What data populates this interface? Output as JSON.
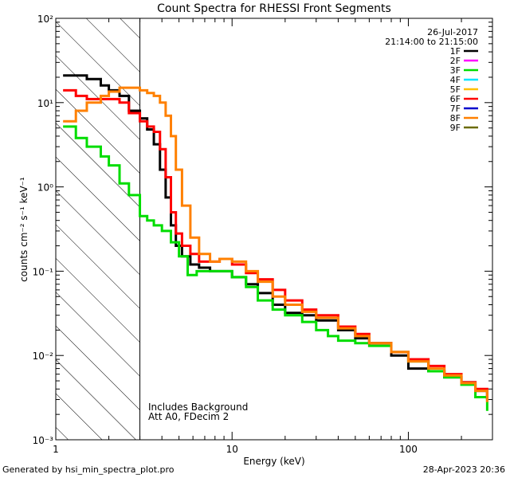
{
  "chart_data": {
    "type": "line",
    "title": "Count Spectra for RHESSI Front Segments",
    "xlabel": "Energy (keV)",
    "ylabel": "counts cm⁻² s⁻¹ keV⁻¹",
    "xscale": "log",
    "yscale": "log",
    "xlim": [
      1,
      300
    ],
    "ylim": [
      0.001,
      100
    ],
    "x_tick_labels": [
      {
        "value": 1,
        "label": "1"
      },
      {
        "value": 10,
        "label": "10"
      },
      {
        "value": 100,
        "label": "100"
      }
    ],
    "y_tick_labels": [
      {
        "value": 100,
        "label": "10²"
      },
      {
        "value": 10,
        "label": "10¹"
      },
      {
        "value": 1,
        "label": "10⁰"
      },
      {
        "value": 0.1,
        "label": "10⁻¹"
      },
      {
        "value": 0.01,
        "label": "10⁻²"
      },
      {
        "value": 0.001,
        "label": "10⁻³"
      }
    ],
    "date": "26-Jul-2017",
    "time_range": "21:14:00 to 21:15:00",
    "shaded_region_x": [
      1,
      3
    ],
    "annotations": [
      "Includes Background",
      "Att A0, FDecim 2"
    ],
    "legend": [
      {
        "name": "1F",
        "color": "#000000"
      },
      {
        "name": "2F",
        "color": "#ff00ff"
      },
      {
        "name": "3F",
        "color": "#00dd00"
      },
      {
        "name": "4F",
        "color": "#00e5ff"
      },
      {
        "name": "5F",
        "color": "#ffc000"
      },
      {
        "name": "6F",
        "color": "#ff0000"
      },
      {
        "name": "7F",
        "color": "#0000cc"
      },
      {
        "name": "8F",
        "color": "#ff8000"
      },
      {
        "name": "9F",
        "color": "#6b6b00"
      }
    ],
    "series": [
      {
        "name": "1F",
        "color": "#000000",
        "points": [
          [
            1.1,
            21
          ],
          [
            1.3,
            21
          ],
          [
            1.5,
            19
          ],
          [
            1.8,
            16
          ],
          [
            2.0,
            14
          ],
          [
            2.3,
            12
          ],
          [
            2.6,
            8
          ],
          [
            3.0,
            6.5
          ],
          [
            3.3,
            4.8
          ],
          [
            3.6,
            3.2
          ],
          [
            3.9,
            1.6
          ],
          [
            4.2,
            0.75
          ],
          [
            4.5,
            0.35
          ],
          [
            4.8,
            0.2
          ],
          [
            5.2,
            0.15
          ],
          [
            5.8,
            0.12
          ],
          [
            6.5,
            0.11
          ],
          [
            7.5,
            0.1
          ],
          [
            8.5,
            0.1
          ],
          [
            10,
            0.085
          ],
          [
            12,
            0.07
          ],
          [
            14,
            0.055
          ],
          [
            17,
            0.04
          ],
          [
            20,
            0.032
          ],
          [
            25,
            0.03
          ],
          [
            30,
            0.026
          ],
          [
            40,
            0.02
          ],
          [
            50,
            0.016
          ],
          [
            60,
            0.014
          ],
          [
            80,
            0.01
          ],
          [
            100,
            0.007
          ],
          [
            130,
            0.0065
          ],
          [
            160,
            0.0055
          ],
          [
            200,
            0.0048
          ],
          [
            240,
            0.0038
          ],
          [
            280,
            0.003
          ]
        ]
      },
      {
        "name": "3F",
        "color": "#00dd00",
        "points": [
          [
            1.1,
            5.2
          ],
          [
            1.3,
            3.8
          ],
          [
            1.5,
            3.0
          ],
          [
            1.8,
            2.3
          ],
          [
            2.0,
            1.8
          ],
          [
            2.3,
            1.1
          ],
          [
            2.6,
            0.8
          ],
          [
            3.0,
            0.45
          ],
          [
            3.3,
            0.4
          ],
          [
            3.6,
            0.35
          ],
          [
            4.0,
            0.3
          ],
          [
            4.5,
            0.22
          ],
          [
            5.0,
            0.15
          ],
          [
            5.6,
            0.09
          ],
          [
            6.3,
            0.1
          ],
          [
            7.0,
            0.1
          ],
          [
            8.0,
            0.1
          ],
          [
            10,
            0.085
          ],
          [
            12,
            0.065
          ],
          [
            14,
            0.045
          ],
          [
            17,
            0.035
          ],
          [
            20,
            0.03
          ],
          [
            25,
            0.025
          ],
          [
            30,
            0.02
          ],
          [
            35,
            0.017
          ],
          [
            40,
            0.015
          ],
          [
            50,
            0.014
          ],
          [
            60,
            0.013
          ],
          [
            80,
            0.011
          ],
          [
            100,
            0.0085
          ],
          [
            130,
            0.0065
          ],
          [
            160,
            0.0055
          ],
          [
            200,
            0.0045
          ],
          [
            240,
            0.0032
          ],
          [
            280,
            0.0022
          ]
        ]
      },
      {
        "name": "6F",
        "color": "#ff0000",
        "points": [
          [
            1.1,
            14
          ],
          [
            1.3,
            12
          ],
          [
            1.5,
            11
          ],
          [
            1.8,
            11
          ],
          [
            2.0,
            11
          ],
          [
            2.3,
            10
          ],
          [
            2.6,
            7.5
          ],
          [
            3.0,
            6.0
          ],
          [
            3.3,
            5.2
          ],
          [
            3.6,
            4.5
          ],
          [
            3.9,
            2.8
          ],
          [
            4.2,
            1.3
          ],
          [
            4.5,
            0.5
          ],
          [
            4.8,
            0.28
          ],
          [
            5.2,
            0.2
          ],
          [
            5.8,
            0.16
          ],
          [
            6.5,
            0.13
          ],
          [
            7.5,
            0.13
          ],
          [
            8.5,
            0.14
          ],
          [
            10,
            0.12
          ],
          [
            12,
            0.095
          ],
          [
            14,
            0.08
          ],
          [
            17,
            0.06
          ],
          [
            20,
            0.045
          ],
          [
            25,
            0.035
          ],
          [
            30,
            0.03
          ],
          [
            40,
            0.022
          ],
          [
            50,
            0.018
          ],
          [
            60,
            0.014
          ],
          [
            80,
            0.011
          ],
          [
            100,
            0.009
          ],
          [
            130,
            0.0075
          ],
          [
            160,
            0.006
          ],
          [
            200,
            0.0048
          ],
          [
            240,
            0.004
          ],
          [
            280,
            0.003
          ]
        ]
      },
      {
        "name": "8F",
        "color": "#ff8000",
        "points": [
          [
            1.1,
            6.0
          ],
          [
            1.3,
            8.0
          ],
          [
            1.5,
            10
          ],
          [
            1.8,
            12
          ],
          [
            2.0,
            13.5
          ],
          [
            2.3,
            15
          ],
          [
            2.6,
            15
          ],
          [
            3.0,
            14
          ],
          [
            3.3,
            13
          ],
          [
            3.6,
            12
          ],
          [
            3.9,
            10
          ],
          [
            4.2,
            7
          ],
          [
            4.5,
            4
          ],
          [
            4.8,
            1.6
          ],
          [
            5.2,
            0.6
          ],
          [
            5.8,
            0.25
          ],
          [
            6.5,
            0.16
          ],
          [
            7.5,
            0.13
          ],
          [
            8.5,
            0.14
          ],
          [
            10,
            0.13
          ],
          [
            12,
            0.1
          ],
          [
            14,
            0.075
          ],
          [
            17,
            0.05
          ],
          [
            20,
            0.04
          ],
          [
            25,
            0.033
          ],
          [
            30,
            0.028
          ],
          [
            40,
            0.021
          ],
          [
            50,
            0.017
          ],
          [
            60,
            0.014
          ],
          [
            80,
            0.011
          ],
          [
            100,
            0.0085
          ],
          [
            130,
            0.007
          ],
          [
            160,
            0.0058
          ],
          [
            200,
            0.0047
          ],
          [
            240,
            0.0038
          ],
          [
            280,
            0.0028
          ]
        ]
      }
    ]
  },
  "footer": {
    "generated_by": "Generated by hsi_min_spectra_plot.pro",
    "timestamp": "28-Apr-2023 20:36"
  }
}
